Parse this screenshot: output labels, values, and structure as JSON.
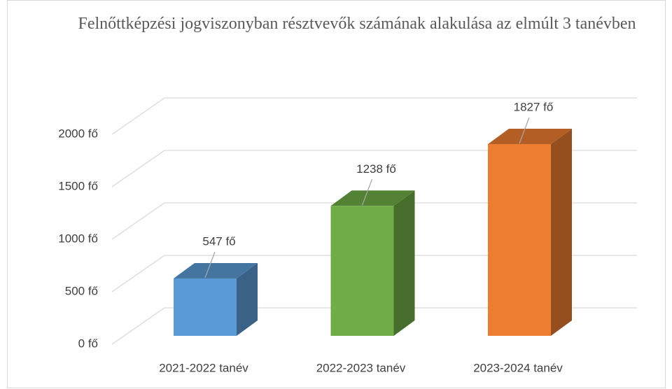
{
  "chart_data": {
    "type": "bar3d",
    "title": "Felnőttképzési jogviszonyban résztvevők számának alakulása az elmúlt 3 tanévben",
    "categories": [
      "2021-2022 tanév",
      "2022-2023 tanév",
      "2023-2024 tanév"
    ],
    "values": [
      547,
      1238,
      1827
    ],
    "value_labels": [
      "547 fő",
      "1238 fő",
      "1827 fő"
    ],
    "colors": [
      "#5b9bd5",
      "#70ad47",
      "#ed7d31"
    ],
    "ylim": [
      0,
      2000
    ],
    "yticks": [
      {
        "value": 0,
        "label": "0 fő"
      },
      {
        "value": 500,
        "label": "500 fő"
      },
      {
        "value": 1000,
        "label": "1000 fő"
      },
      {
        "value": 1500,
        "label": "1500 fő"
      },
      {
        "value": 2000,
        "label": "2000 fő"
      }
    ],
    "grid": true
  }
}
